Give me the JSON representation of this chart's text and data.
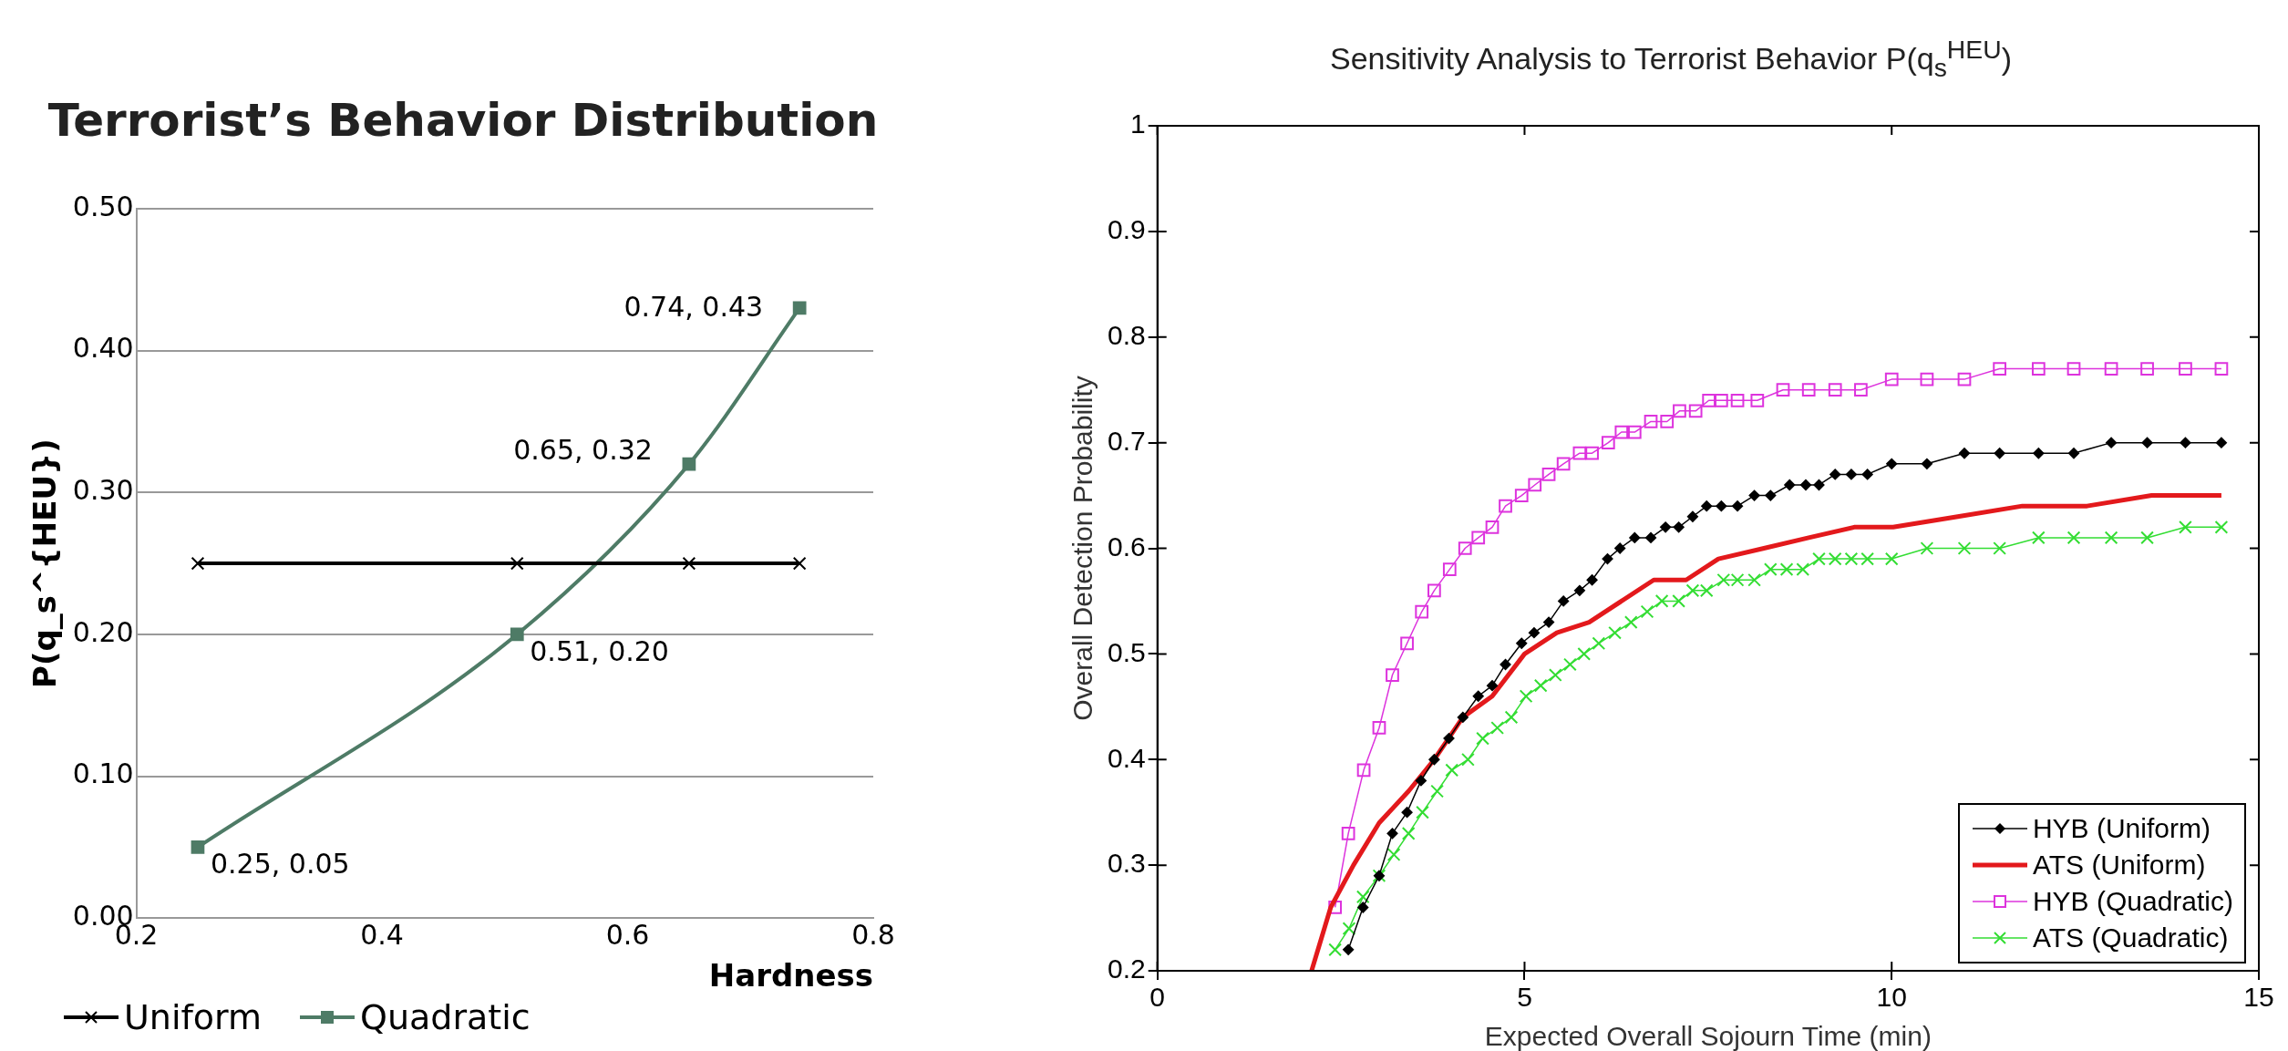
{
  "chart_data": [
    {
      "type": "line",
      "title": "Terrorist’s Behavior Distribution",
      "xlabel": "Hardness",
      "ylabel": "P(q_s^{HEU})",
      "xlim": [
        0.2,
        0.8
      ],
      "xticks": [
        0.2,
        0.4,
        0.6,
        0.8
      ],
      "ylim": [
        0,
        0.5
      ],
      "yticks": [
        {
          "value": 0,
          "label": "0.00"
        },
        {
          "value": 0.1,
          "label": "0.10"
        },
        {
          "value": 0.2,
          "label": "0.20"
        },
        {
          "value": 0.3,
          "label": "0.30"
        },
        {
          "value": 0.4,
          "label": "0.40"
        },
        {
          "value": 0.5,
          "label": "0.50"
        }
      ],
      "grid": "y",
      "legend": "bottom left",
      "series": [
        {
          "name": "Uniform",
          "color": "#000000",
          "marker": "cross",
          "x": [
            0.25,
            0.51,
            0.65,
            0.74
          ],
          "values": [
            0.25,
            0.25,
            0.25,
            0.25
          ]
        },
        {
          "name": "Quadratic",
          "color": "#4e7b66",
          "marker": "square",
          "x": [
            0.25,
            0.51,
            0.65,
            0.74
          ],
          "values": [
            0.05,
            0.2,
            0.32,
            0.43
          ],
          "value_labels": [
            "0.25, 0.05",
            "0.51, 0.20",
            "0.65, 0.32",
            "0.74, 0.43"
          ]
        }
      ]
    },
    {
      "type": "line",
      "title": "Sensitivity Analysis to Terrorist Behavior P(q$_{s}$$^{HEU}$)",
      "xlabel": "Expected Overall Sojourn Time (min)",
      "ylabel": "Overall Detection Probability",
      "xlim": [
        0,
        15
      ],
      "xticks": [
        0,
        5,
        10,
        15
      ],
      "ylim": [
        0.2,
        1
      ],
      "yticks": [
        0.2,
        0.3,
        0.4,
        0.5,
        0.6,
        0.7,
        0.8,
        0.9,
        1
      ],
      "grid": false,
      "legend": "bottom right",
      "series": [
        {
          "name": "HYB (Uniform)",
          "color": "#000000",
          "marker": "diamond",
          "x": [
            2.6,
            2.8,
            3.02,
            3.2,
            3.4,
            3.59,
            3.77,
            3.97,
            4.16,
            4.37,
            4.56,
            4.74,
            4.96,
            5.13,
            5.33,
            5.53,
            5.75,
            5.92,
            6.13,
            6.3,
            6.5,
            6.72,
            6.92,
            7.1,
            7.29,
            7.48,
            7.68,
            7.9,
            8.13,
            8.35,
            8.61,
            8.83,
            9.01,
            9.23,
            9.45,
            9.67,
            10.0,
            10.48,
            10.99,
            11.47,
            12.0,
            12.48,
            12.99,
            13.48,
            14.0,
            14.49
          ],
          "values": [
            0.22,
            0.26,
            0.29,
            0.33,
            0.35,
            0.38,
            0.4,
            0.42,
            0.44,
            0.46,
            0.47,
            0.49,
            0.51,
            0.52,
            0.53,
            0.55,
            0.56,
            0.57,
            0.59,
            0.6,
            0.61,
            0.61,
            0.62,
            0.62,
            0.63,
            0.64,
            0.64,
            0.64,
            0.65,
            0.65,
            0.66,
            0.66,
            0.66,
            0.67,
            0.67,
            0.67,
            0.68,
            0.68,
            0.69,
            0.69,
            0.69,
            0.69,
            0.7,
            0.7,
            0.7,
            0.7
          ]
        },
        {
          "name": "ATS (Uniform)",
          "color": "#e3191c",
          "marker": "none",
          "x": [
            2.1,
            2.36,
            2.67,
            3.02,
            3.42,
            3.77,
            4.16,
            4.56,
            5.0,
            5.44,
            5.88,
            6.32,
            6.76,
            7.2,
            7.64,
            8.26,
            8.87,
            9.49,
            10.02,
            10.9,
            11.78,
            12.66,
            13.54,
            14.49
          ],
          "values": [
            0.2,
            0.26,
            0.3,
            0.34,
            0.37,
            0.4,
            0.44,
            0.46,
            0.5,
            0.52,
            0.53,
            0.55,
            0.57,
            0.57,
            0.59,
            0.6,
            0.61,
            0.62,
            0.62,
            0.63,
            0.64,
            0.64,
            0.65,
            0.65
          ]
        },
        {
          "name": "HYB (Quadratic)",
          "color": "#dd33dd",
          "marker": "square",
          "x": [
            2.42,
            2.6,
            2.81,
            3.02,
            3.2,
            3.4,
            3.6,
            3.77,
            3.98,
            4.19,
            4.37,
            4.56,
            4.74,
            4.96,
            5.14,
            5.33,
            5.53,
            5.75,
            5.92,
            6.14,
            6.32,
            6.5,
            6.72,
            6.94,
            7.11,
            7.33,
            7.51,
            7.68,
            7.9,
            8.17,
            8.52,
            8.87,
            9.23,
            9.58,
            10.0,
            10.48,
            10.99,
            11.47,
            12.0,
            12.48,
            12.99,
            13.48,
            14.0,
            14.49
          ],
          "values": [
            0.26,
            0.33,
            0.39,
            0.43,
            0.48,
            0.51,
            0.54,
            0.56,
            0.58,
            0.6,
            0.61,
            0.62,
            0.64,
            0.65,
            0.66,
            0.67,
            0.68,
            0.69,
            0.69,
            0.7,
            0.71,
            0.71,
            0.72,
            0.72,
            0.73,
            0.73,
            0.74,
            0.74,
            0.74,
            0.74,
            0.75,
            0.75,
            0.75,
            0.75,
            0.76,
            0.76,
            0.76,
            0.77,
            0.77,
            0.77,
            0.77,
            0.77,
            0.77,
            0.77
          ]
        },
        {
          "name": "ATS (Quadratic)",
          "color": "#33dd33",
          "marker": "cross",
          "x": [
            2.42,
            2.61,
            2.8,
            3.02,
            3.22,
            3.42,
            3.61,
            3.81,
            4.01,
            4.23,
            4.43,
            4.63,
            4.82,
            5.02,
            5.22,
            5.42,
            5.62,
            5.81,
            6.01,
            6.23,
            6.45,
            6.67,
            6.87,
            7.1,
            7.29,
            7.48,
            7.71,
            7.9,
            8.13,
            8.35,
            8.57,
            8.79,
            9.01,
            9.23,
            9.45,
            9.67,
            10.0,
            10.48,
            10.99,
            11.47,
            12.0,
            12.48,
            12.99,
            13.48,
            14.0,
            14.49
          ],
          "values": [
            0.22,
            0.24,
            0.27,
            0.29,
            0.31,
            0.33,
            0.35,
            0.37,
            0.39,
            0.4,
            0.42,
            0.43,
            0.44,
            0.46,
            0.47,
            0.48,
            0.49,
            0.5,
            0.51,
            0.52,
            0.53,
            0.54,
            0.55,
            0.55,
            0.56,
            0.56,
            0.57,
            0.57,
            0.57,
            0.58,
            0.58,
            0.58,
            0.59,
            0.59,
            0.59,
            0.59,
            0.59,
            0.6,
            0.6,
            0.6,
            0.61,
            0.61,
            0.61,
            0.61,
            0.62,
            0.62
          ]
        }
      ]
    }
  ]
}
